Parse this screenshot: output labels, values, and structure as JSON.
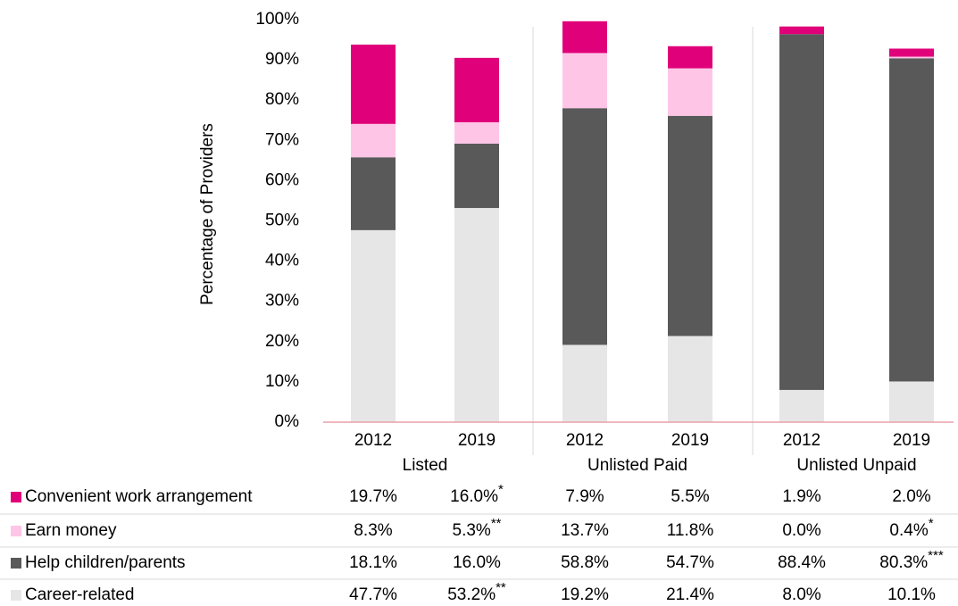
{
  "chart_data": {
    "type": "stacked_bar",
    "y_label": "Percentage of Providers",
    "categories": [
      "2012",
      "2019",
      "2012",
      "2019",
      "2012",
      "2019"
    ],
    "groups": [
      "Listed",
      "Unlisted Paid",
      "Unlisted Unpaid"
    ],
    "series": [
      {
        "name": "Convenient work arrangement",
        "color": "#e0007a",
        "values": [
          19.7,
          16.0,
          7.9,
          5.5,
          1.9,
          2.0
        ],
        "value_labels": [
          "19.7%",
          "16.0%",
          "7.9%",
          "5.5%",
          "1.9%",
          "2.0%"
        ],
        "significance": [
          null,
          "*",
          null,
          null,
          null,
          null
        ]
      },
      {
        "name": "Earn money",
        "color": "#ffc5e6",
        "values": [
          8.3,
          5.3,
          13.7,
          11.8,
          0.0,
          0.4
        ],
        "value_labels": [
          "8.3%",
          "5.3%",
          "13.7%",
          "11.8%",
          "0.0%",
          "0.4%"
        ],
        "significance": [
          null,
          "**",
          null,
          null,
          null,
          "*"
        ]
      },
      {
        "name": "Help children/parents",
        "color": "#595959",
        "values": [
          18.1,
          16.0,
          58.8,
          54.7,
          88.4,
          80.3
        ],
        "value_labels": [
          "18.1%",
          "16.0%",
          "58.8%",
          "54.7%",
          "88.4%",
          "80.3%"
        ],
        "significance": [
          null,
          null,
          null,
          null,
          null,
          "***"
        ]
      },
      {
        "name": "Career-related",
        "color": "#e6e6e6",
        "values": [
          47.7,
          53.2,
          19.2,
          21.4,
          8.0,
          10.1
        ],
        "value_labels": [
          "47.7%",
          "53.2%",
          "19.2%",
          "21.4%",
          "8.0%",
          "10.1%"
        ],
        "significance": [
          null,
          "**",
          null,
          null,
          null,
          null
        ]
      }
    ],
    "ylim": [
      0,
      100
    ],
    "yticks": [
      {
        "value": 0,
        "label": "0%"
      },
      {
        "value": 10,
        "label": "10%"
      },
      {
        "value": 20,
        "label": "20%"
      },
      {
        "value": 30,
        "label": "30%"
      },
      {
        "value": 40,
        "label": "40%"
      },
      {
        "value": 50,
        "label": "50%"
      },
      {
        "value": 60,
        "label": "60%"
      },
      {
        "value": 70,
        "label": "70%"
      },
      {
        "value": 80,
        "label": "80%"
      },
      {
        "value": 90,
        "label": "90%"
      },
      {
        "value": 100,
        "label": "100%"
      }
    ],
    "grid": false
  }
}
